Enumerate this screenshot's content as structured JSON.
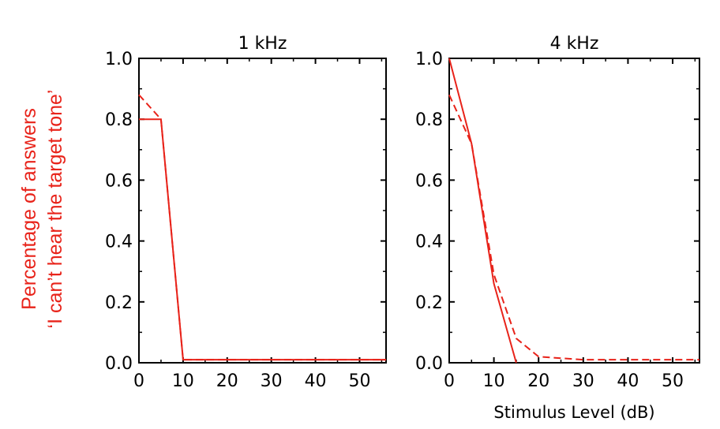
{
  "ylabel_lines": [
    "Percentage of answers",
    "‘I can’t hear the target tone’"
  ],
  "colors": {
    "series": "#e8231a",
    "axis": "#000000",
    "ylabel": "#e8231a"
  },
  "chart_data": [
    {
      "type": "line",
      "title": "1 kHz",
      "xlabel": "",
      "xlim": [
        0,
        56
      ],
      "ylim": [
        0,
        1
      ],
      "xticks": [
        "0",
        "10",
        "20",
        "30",
        "40",
        "50"
      ],
      "yticks": [
        "0.0",
        "0.2",
        "0.4",
        "0.6",
        "0.8",
        "1.0"
      ],
      "series": [
        {
          "style": "solid",
          "x": [
            0,
            5,
            10,
            56
          ],
          "y": [
            0.8,
            0.8,
            0.01,
            0.01
          ]
        },
        {
          "style": "dashed",
          "x": [
            0,
            5,
            10,
            56
          ],
          "y": [
            0.88,
            0.8,
            0.01,
            0.01
          ]
        }
      ]
    },
    {
      "type": "line",
      "title": "4 kHz",
      "xlabel": "Stimulus Level (dB)",
      "xlim": [
        0,
        56
      ],
      "ylim": [
        0,
        1
      ],
      "xticks": [
        "0",
        "10",
        "20",
        "30",
        "40",
        "50"
      ],
      "yticks": [
        "0.0",
        "0.2",
        "0.4",
        "0.6",
        "0.8",
        "1.0"
      ],
      "series": [
        {
          "style": "solid",
          "x": [
            0,
            5,
            10,
            15
          ],
          "y": [
            1.0,
            0.72,
            0.26,
            0.0
          ]
        },
        {
          "style": "dashed",
          "x": [
            0,
            5,
            10,
            15,
            20,
            30,
            56
          ],
          "y": [
            0.88,
            0.72,
            0.29,
            0.08,
            0.02,
            0.01,
            0.01
          ]
        }
      ]
    }
  ]
}
